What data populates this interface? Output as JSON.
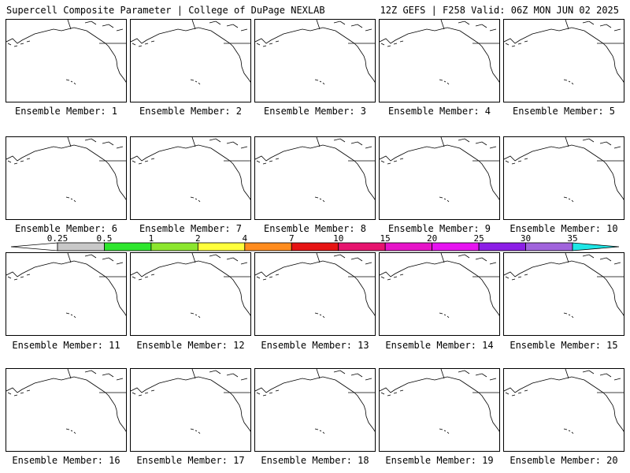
{
  "header": {
    "title_left": "Supercell Composite Parameter | College of DuPage NEXLAB",
    "title_right": "12Z GEFS | F258 Valid: 06Z MON JUN 02 2025"
  },
  "colorbar": {
    "ticks": [
      "0.25",
      "0.5",
      "1",
      "2",
      "4",
      "7",
      "10",
      "15",
      "20",
      "25",
      "30",
      "35"
    ],
    "colors": [
      "#c8c8c8",
      "#2ee62e",
      "#8ce62e",
      "#ffff3c",
      "#ff8c1e",
      "#e61414",
      "#e6146e",
      "#e614c8",
      "#e614f0",
      "#8c1ee6",
      "#a064dc",
      "#1ee6e6"
    ]
  },
  "members": [
    {
      "label": "Ensemble Member: 1"
    },
    {
      "label": "Ensemble Member: 2"
    },
    {
      "label": "Ensemble Member: 3"
    },
    {
      "label": "Ensemble Member: 4"
    },
    {
      "label": "Ensemble Member: 5"
    },
    {
      "label": "Ensemble Member: 6"
    },
    {
      "label": "Ensemble Member: 7"
    },
    {
      "label": "Ensemble Member: 8"
    },
    {
      "label": "Ensemble Member: 9"
    },
    {
      "label": "Ensemble Member: 10"
    },
    {
      "label": "Ensemble Member: 11"
    },
    {
      "label": "Ensemble Member: 12"
    },
    {
      "label": "Ensemble Member: 13"
    },
    {
      "label": "Ensemble Member: 14"
    },
    {
      "label": "Ensemble Member: 15"
    },
    {
      "label": "Ensemble Member: 16"
    },
    {
      "label": "Ensemble Member: 17"
    },
    {
      "label": "Ensemble Member: 18"
    },
    {
      "label": "Ensemble Member: 19"
    },
    {
      "label": "Ensemble Member: 20"
    }
  ]
}
